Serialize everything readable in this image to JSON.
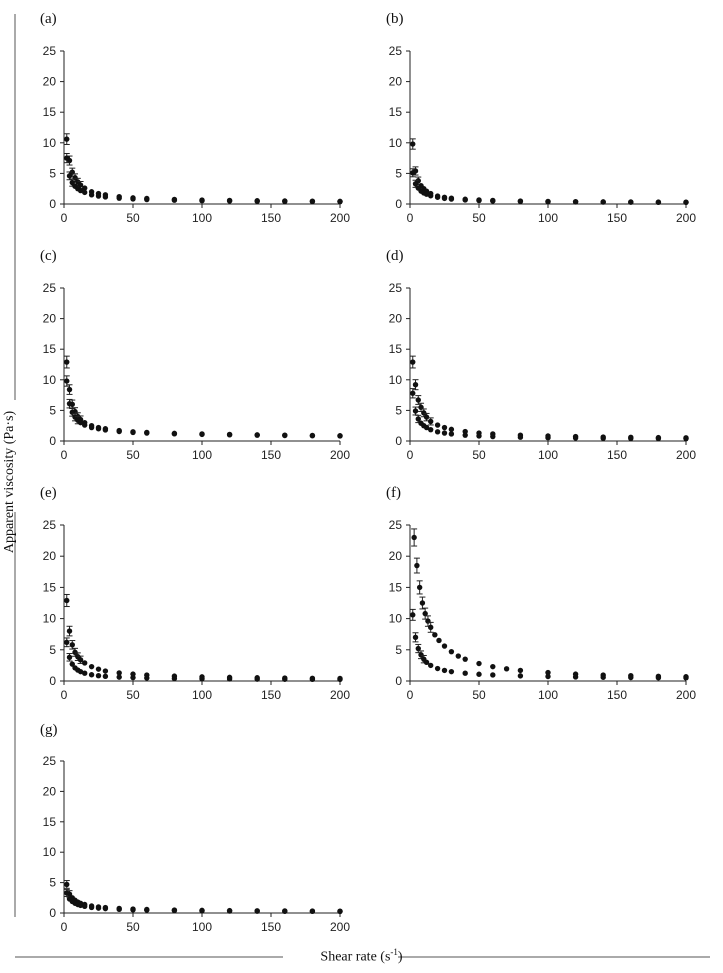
{
  "figure": {
    "ylabel": "Apparent viscosity (Pa·s)",
    "xlabel_main": "Shear rate (s",
    "xlabel_sup": "-1",
    "xlabel_tail": ")"
  },
  "chart_data": [
    {
      "type": "scatter",
      "panel": "(a)",
      "xlim": [
        0,
        200
      ],
      "ylim": [
        0,
        25
      ],
      "xticks": [
        0,
        50,
        100,
        150,
        200
      ],
      "yticks": [
        0,
        5,
        10,
        15,
        20,
        25
      ],
      "series": [
        {
          "x": [
            2,
            4,
            6,
            8,
            10,
            12,
            15,
            20,
            25,
            30,
            40,
            50,
            60,
            80,
            100,
            120,
            140,
            160,
            180,
            200
          ],
          "y": [
            10.6,
            7.1,
            5.2,
            4.3,
            3.6,
            3.1,
            2.6,
            2.0,
            1.7,
            1.5,
            1.2,
            1.0,
            0.9,
            0.75,
            0.65,
            0.58,
            0.53,
            0.49,
            0.46,
            0.43
          ]
        },
        {
          "x": [
            2,
            4,
            6,
            8,
            10,
            12,
            15,
            20,
            25,
            30,
            40,
            50,
            60,
            80,
            100,
            120,
            140,
            160,
            180,
            200
          ],
          "y": [
            7.5,
            4.6,
            3.5,
            2.9,
            2.5,
            2.2,
            1.9,
            1.5,
            1.3,
            1.15,
            0.95,
            0.82,
            0.73,
            0.62,
            0.54,
            0.49,
            0.45,
            0.42,
            0.4,
            0.38
          ]
        }
      ]
    },
    {
      "type": "scatter",
      "panel": "(b)",
      "xlim": [
        0,
        200
      ],
      "ylim": [
        0,
        25
      ],
      "xticks": [
        0,
        50,
        100,
        150,
        200
      ],
      "yticks": [
        0,
        5,
        10,
        15,
        20,
        25
      ],
      "series": [
        {
          "x": [
            2,
            4,
            6,
            8,
            10,
            12,
            15,
            20,
            25,
            30,
            40,
            50,
            60,
            80,
            100,
            120,
            140,
            160,
            180,
            200
          ],
          "y": [
            9.8,
            5.4,
            3.8,
            3.0,
            2.5,
            2.1,
            1.7,
            1.3,
            1.1,
            0.95,
            0.78,
            0.66,
            0.58,
            0.48,
            0.42,
            0.38,
            0.35,
            0.33,
            0.31,
            0.3
          ]
        },
        {
          "x": [
            2,
            4,
            6,
            8,
            10,
            12,
            15,
            20,
            25,
            30,
            40,
            50,
            60,
            80,
            100,
            120,
            140,
            160,
            180,
            200
          ],
          "y": [
            5.1,
            3.3,
            2.6,
            2.1,
            1.8,
            1.6,
            1.35,
            1.1,
            0.92,
            0.8,
            0.66,
            0.56,
            0.5,
            0.42,
            0.37,
            0.34,
            0.31,
            0.29,
            0.28,
            0.27
          ]
        }
      ]
    },
    {
      "type": "scatter",
      "panel": "(c)",
      "xlim": [
        0,
        200
      ],
      "ylim": [
        0,
        25
      ],
      "xticks": [
        0,
        50,
        100,
        150,
        200
      ],
      "yticks": [
        0,
        5,
        10,
        15,
        20,
        25
      ],
      "series": [
        {
          "x": [
            2,
            4,
            6,
            8,
            10,
            12,
            15,
            20,
            25,
            30,
            40,
            50,
            60,
            80,
            100,
            120,
            140,
            160,
            180,
            200
          ],
          "y": [
            12.9,
            8.4,
            6.0,
            4.8,
            4.0,
            3.5,
            3.0,
            2.5,
            2.2,
            2.0,
            1.7,
            1.5,
            1.4,
            1.25,
            1.15,
            1.07,
            1.0,
            0.95,
            0.9,
            0.86
          ]
        },
        {
          "x": [
            2,
            4,
            6,
            8,
            10,
            12,
            15,
            20,
            25,
            30,
            40,
            50,
            60,
            80,
            100,
            120,
            140,
            160,
            180,
            200
          ],
          "y": [
            9.8,
            6.1,
            4.7,
            3.9,
            3.4,
            3.0,
            2.6,
            2.2,
            2.0,
            1.8,
            1.55,
            1.4,
            1.3,
            1.17,
            1.08,
            1.01,
            0.95,
            0.9,
            0.86,
            0.82
          ]
        }
      ]
    },
    {
      "type": "scatter",
      "panel": "(d)",
      "xlim": [
        0,
        200
      ],
      "ylim": [
        0,
        25
      ],
      "xticks": [
        0,
        50,
        100,
        150,
        200
      ],
      "yticks": [
        0,
        5,
        10,
        15,
        20,
        25
      ],
      "series": [
        {
          "x": [
            2,
            4,
            6,
            8,
            10,
            12,
            15,
            20,
            25,
            30,
            40,
            50,
            60,
            80,
            100,
            120,
            140,
            160,
            180,
            200
          ],
          "y": [
            12.9,
            9.2,
            6.7,
            5.5,
            4.6,
            3.9,
            3.2,
            2.6,
            2.2,
            1.9,
            1.55,
            1.3,
            1.15,
            0.95,
            0.82,
            0.72,
            0.65,
            0.6,
            0.55,
            0.52
          ]
        },
        {
          "x": [
            2,
            4,
            6,
            8,
            10,
            12,
            15,
            20,
            25,
            30,
            40,
            50,
            60,
            80,
            100,
            120,
            140,
            160,
            180,
            200
          ],
          "y": [
            7.8,
            4.9,
            3.6,
            2.9,
            2.5,
            2.2,
            1.85,
            1.5,
            1.3,
            1.15,
            0.95,
            0.82,
            0.73,
            0.62,
            0.54,
            0.49,
            0.45,
            0.42,
            0.4,
            0.38
          ]
        }
      ]
    },
    {
      "type": "scatter",
      "panel": "(e)",
      "xlim": [
        0,
        200
      ],
      "ylim": [
        0,
        25
      ],
      "xticks": [
        0,
        50,
        100,
        150,
        200
      ],
      "yticks": [
        0,
        5,
        10,
        15,
        20,
        25
      ],
      "series": [
        {
          "x": [
            2,
            4,
            6,
            8,
            10,
            12,
            15,
            20,
            25,
            30,
            40,
            50,
            60,
            80,
            100,
            120,
            140,
            160,
            180,
            200
          ],
          "y": [
            12.9,
            8.0,
            5.8,
            4.6,
            3.9,
            3.4,
            2.9,
            2.3,
            1.9,
            1.6,
            1.3,
            1.1,
            0.95,
            0.78,
            0.66,
            0.58,
            0.52,
            0.47,
            0.43,
            0.4
          ]
        },
        {
          "x": [
            2,
            4,
            6,
            8,
            10,
            12,
            15,
            20,
            25,
            30,
            40,
            50,
            60,
            80,
            100,
            120,
            140,
            160,
            180,
            200
          ],
          "y": [
            6.2,
            3.8,
            2.7,
            2.1,
            1.75,
            1.5,
            1.25,
            1.0,
            0.85,
            0.75,
            0.62,
            0.54,
            0.48,
            0.41,
            0.36,
            0.33,
            0.3,
            0.28,
            0.27,
            0.26
          ]
        }
      ]
    },
    {
      "type": "scatter",
      "panel": "(f)",
      "xlim": [
        0,
        200
      ],
      "ylim": [
        0,
        25
      ],
      "xticks": [
        0,
        50,
        100,
        150,
        200
      ],
      "yticks": [
        0,
        5,
        10,
        15,
        20,
        25
      ],
      "series": [
        {
          "x": [
            3,
            5,
            7,
            9,
            11,
            13,
            15,
            18,
            21,
            25,
            30,
            35,
            40,
            50,
            60,
            70,
            80,
            100,
            120,
            140,
            160,
            180,
            200
          ],
          "y": [
            23.0,
            18.5,
            15.0,
            12.5,
            10.8,
            9.6,
            8.6,
            7.4,
            6.5,
            5.6,
            4.7,
            4.0,
            3.5,
            2.8,
            2.3,
            1.95,
            1.7,
            1.35,
            1.1,
            0.95,
            0.85,
            0.75,
            0.68
          ]
        },
        {
          "x": [
            2,
            4,
            6,
            8,
            10,
            12,
            15,
            20,
            25,
            30,
            40,
            50,
            60,
            80,
            100,
            120,
            140,
            160,
            180,
            200
          ],
          "y": [
            10.6,
            7.0,
            5.2,
            4.2,
            3.5,
            3.0,
            2.5,
            2.0,
            1.7,
            1.5,
            1.25,
            1.08,
            0.97,
            0.82,
            0.72,
            0.65,
            0.6,
            0.56,
            0.52,
            0.5
          ]
        }
      ]
    },
    {
      "type": "scatter",
      "panel": "(g)",
      "xlim": [
        0,
        200
      ],
      "ylim": [
        0,
        25
      ],
      "xticks": [
        0,
        50,
        100,
        150,
        200
      ],
      "yticks": [
        0,
        5,
        10,
        15,
        20,
        25
      ],
      "series": [
        {
          "x": [
            2,
            4,
            6,
            8,
            10,
            12,
            15,
            20,
            25,
            30,
            40,
            50,
            60,
            80,
            100,
            120,
            140,
            160,
            180,
            200
          ],
          "y": [
            4.7,
            3.1,
            2.5,
            2.1,
            1.8,
            1.6,
            1.4,
            1.15,
            1.0,
            0.9,
            0.75,
            0.65,
            0.58,
            0.49,
            0.43,
            0.39,
            0.36,
            0.34,
            0.32,
            0.3
          ]
        },
        {
          "x": [
            2,
            4,
            6,
            8,
            10,
            12,
            15,
            20,
            25,
            30,
            40,
            50,
            60,
            80,
            100,
            120,
            140,
            160,
            180,
            200
          ],
          "y": [
            3.3,
            2.3,
            1.9,
            1.6,
            1.4,
            1.25,
            1.1,
            0.92,
            0.8,
            0.72,
            0.6,
            0.52,
            0.47,
            0.4,
            0.35,
            0.32,
            0.3,
            0.28,
            0.27,
            0.26
          ]
        }
      ]
    }
  ]
}
